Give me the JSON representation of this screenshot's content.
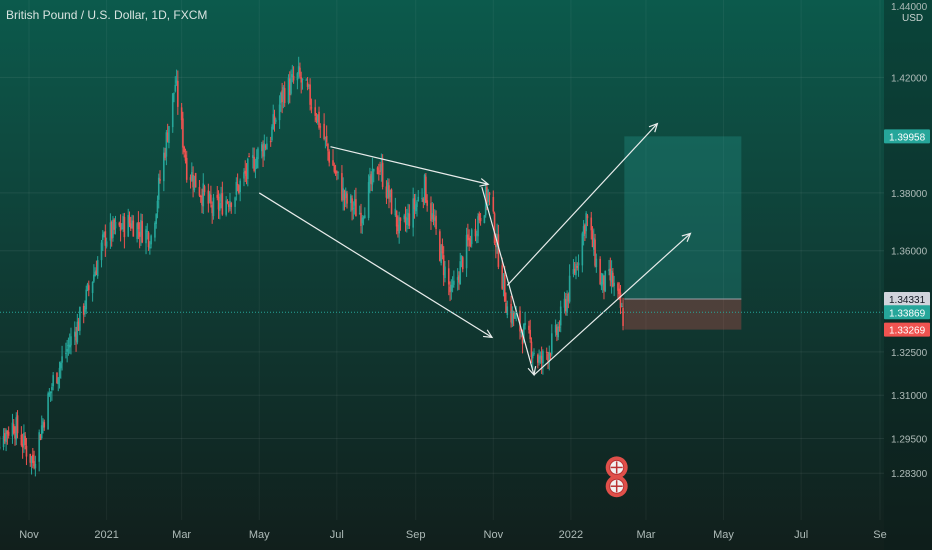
{
  "header": {
    "title": "British Pound / U.S. Dollar, 1D, FXCM"
  },
  "price_axis": {
    "unit": "USD"
  },
  "chart_data": {
    "type": "candlestick",
    "title": "British Pound / U.S. Dollar, 1D, FXCM",
    "ylim": [
      1.272,
      1.444
    ],
    "yticks": [
      1.42,
      1.38,
      1.36,
      1.325,
      1.31,
      1.295,
      1.283
    ],
    "ytick_labels": [
      "1.42000",
      "1.38000",
      "1.36000",
      "1.32500",
      "1.31000",
      "1.29500",
      "1.28300"
    ],
    "top_cut_label": "1.44000",
    "x_labels": [
      "Nov",
      "2021",
      "Mar",
      "May",
      "Jul",
      "Sep",
      "Nov",
      "2022",
      "Mar",
      "May",
      "Jul",
      "Se"
    ],
    "x_dates": [
      "2020-11-01",
      "2021-01-01",
      "2021-03-01",
      "2021-05-01",
      "2021-07-01",
      "2021-09-01",
      "2021-11-01",
      "2022-01-01",
      "2022-03-01",
      "2022-05-01",
      "2022-07-01",
      "2022-09-01"
    ],
    "price_path": [
      [
        "2020-10-01",
        1.292
      ],
      [
        "2020-10-20",
        1.3
      ],
      [
        "2020-11-04",
        1.287
      ],
      [
        "2020-11-20",
        1.315
      ],
      [
        "2020-12-10",
        1.335
      ],
      [
        "2020-12-31",
        1.365
      ],
      [
        "2021-01-20",
        1.37
      ],
      [
        "2021-02-05",
        1.365
      ],
      [
        "2021-02-24",
        1.418
      ],
      [
        "2021-03-05",
        1.389
      ],
      [
        "2021-03-25",
        1.374
      ],
      [
        "2021-04-12",
        1.38
      ],
      [
        "2021-04-28",
        1.392
      ],
      [
        "2021-05-10",
        1.4
      ],
      [
        "2021-05-20",
        1.415
      ],
      [
        "2021-06-01",
        1.42
      ],
      [
        "2021-06-14",
        1.409
      ],
      [
        "2021-06-25",
        1.393
      ],
      [
        "2021-07-08",
        1.377
      ],
      [
        "2021-07-20",
        1.373
      ],
      [
        "2021-08-03",
        1.39
      ],
      [
        "2021-08-20",
        1.366
      ],
      [
        "2021-09-08",
        1.382
      ],
      [
        "2021-09-29",
        1.344
      ],
      [
        "2021-10-10",
        1.36
      ],
      [
        "2021-10-28",
        1.38
      ],
      [
        "2021-11-12",
        1.34
      ],
      [
        "2021-11-30",
        1.328
      ],
      [
        "2021-12-08",
        1.321
      ],
      [
        "2021-12-20",
        1.33
      ],
      [
        "2022-01-05",
        1.355
      ],
      [
        "2022-01-13",
        1.372
      ],
      [
        "2022-01-25",
        1.348
      ],
      [
        "2022-02-02",
        1.35
      ],
      [
        "2022-02-11",
        1.337
      ]
    ],
    "last_date": "2022-02-11",
    "price_labels": [
      {
        "value": 1.39958,
        "text": "1.39958",
        "bg": "#26a69a",
        "fg": "#ffffff"
      },
      {
        "value": 1.34331,
        "text": "1.34331",
        "bg": "#d1d4dc",
        "fg": "#131722"
      },
      {
        "value": 1.33869,
        "text": "1.33869",
        "bg": "#26a69a",
        "fg": "#ffffff"
      },
      {
        "value": 1.33269,
        "text": "1.33269",
        "bg": "#ef5350",
        "fg": "#ffffff"
      }
    ],
    "current_price": 1.33869,
    "long_position": {
      "entry": 1.34331,
      "target": 1.39958,
      "stop": 1.33269,
      "from_date": "2022-02-12",
      "to_date": "2022-05-15"
    },
    "drawings": [
      {
        "name": "upper-wedge-line",
        "from": [
          "2021-06-26",
          1.396
        ],
        "to": [
          "2021-10-28",
          1.383
        ]
      },
      {
        "name": "lower-wedge-line",
        "from": [
          "2021-05-01",
          1.38
        ],
        "to": [
          "2021-10-31",
          1.33
        ]
      },
      {
        "name": "breakdown-line",
        "from": [
          "2021-10-23",
          1.382
        ],
        "to": [
          "2021-12-03",
          1.317
        ]
      },
      {
        "name": "recovery-line",
        "from": [
          "2021-12-03",
          1.317
        ],
        "to": [
          "2022-04-05",
          1.366
        ]
      },
      {
        "name": "upper-projection-line",
        "from": [
          "2021-11-12",
          1.348
        ],
        "to": [
          "2022-03-10",
          1.404
        ]
      }
    ],
    "colors": {
      "up": "#26a69a",
      "down": "#ef5350",
      "drawing": "#e8eceb"
    },
    "events": [
      {
        "name": "uk-flag-event-icon",
        "date": "2022-02-06",
        "y_price": 1.285
      },
      {
        "name": "us-flag-event-icon",
        "date": "2022-02-06",
        "y_price": 1.2785
      }
    ]
  }
}
